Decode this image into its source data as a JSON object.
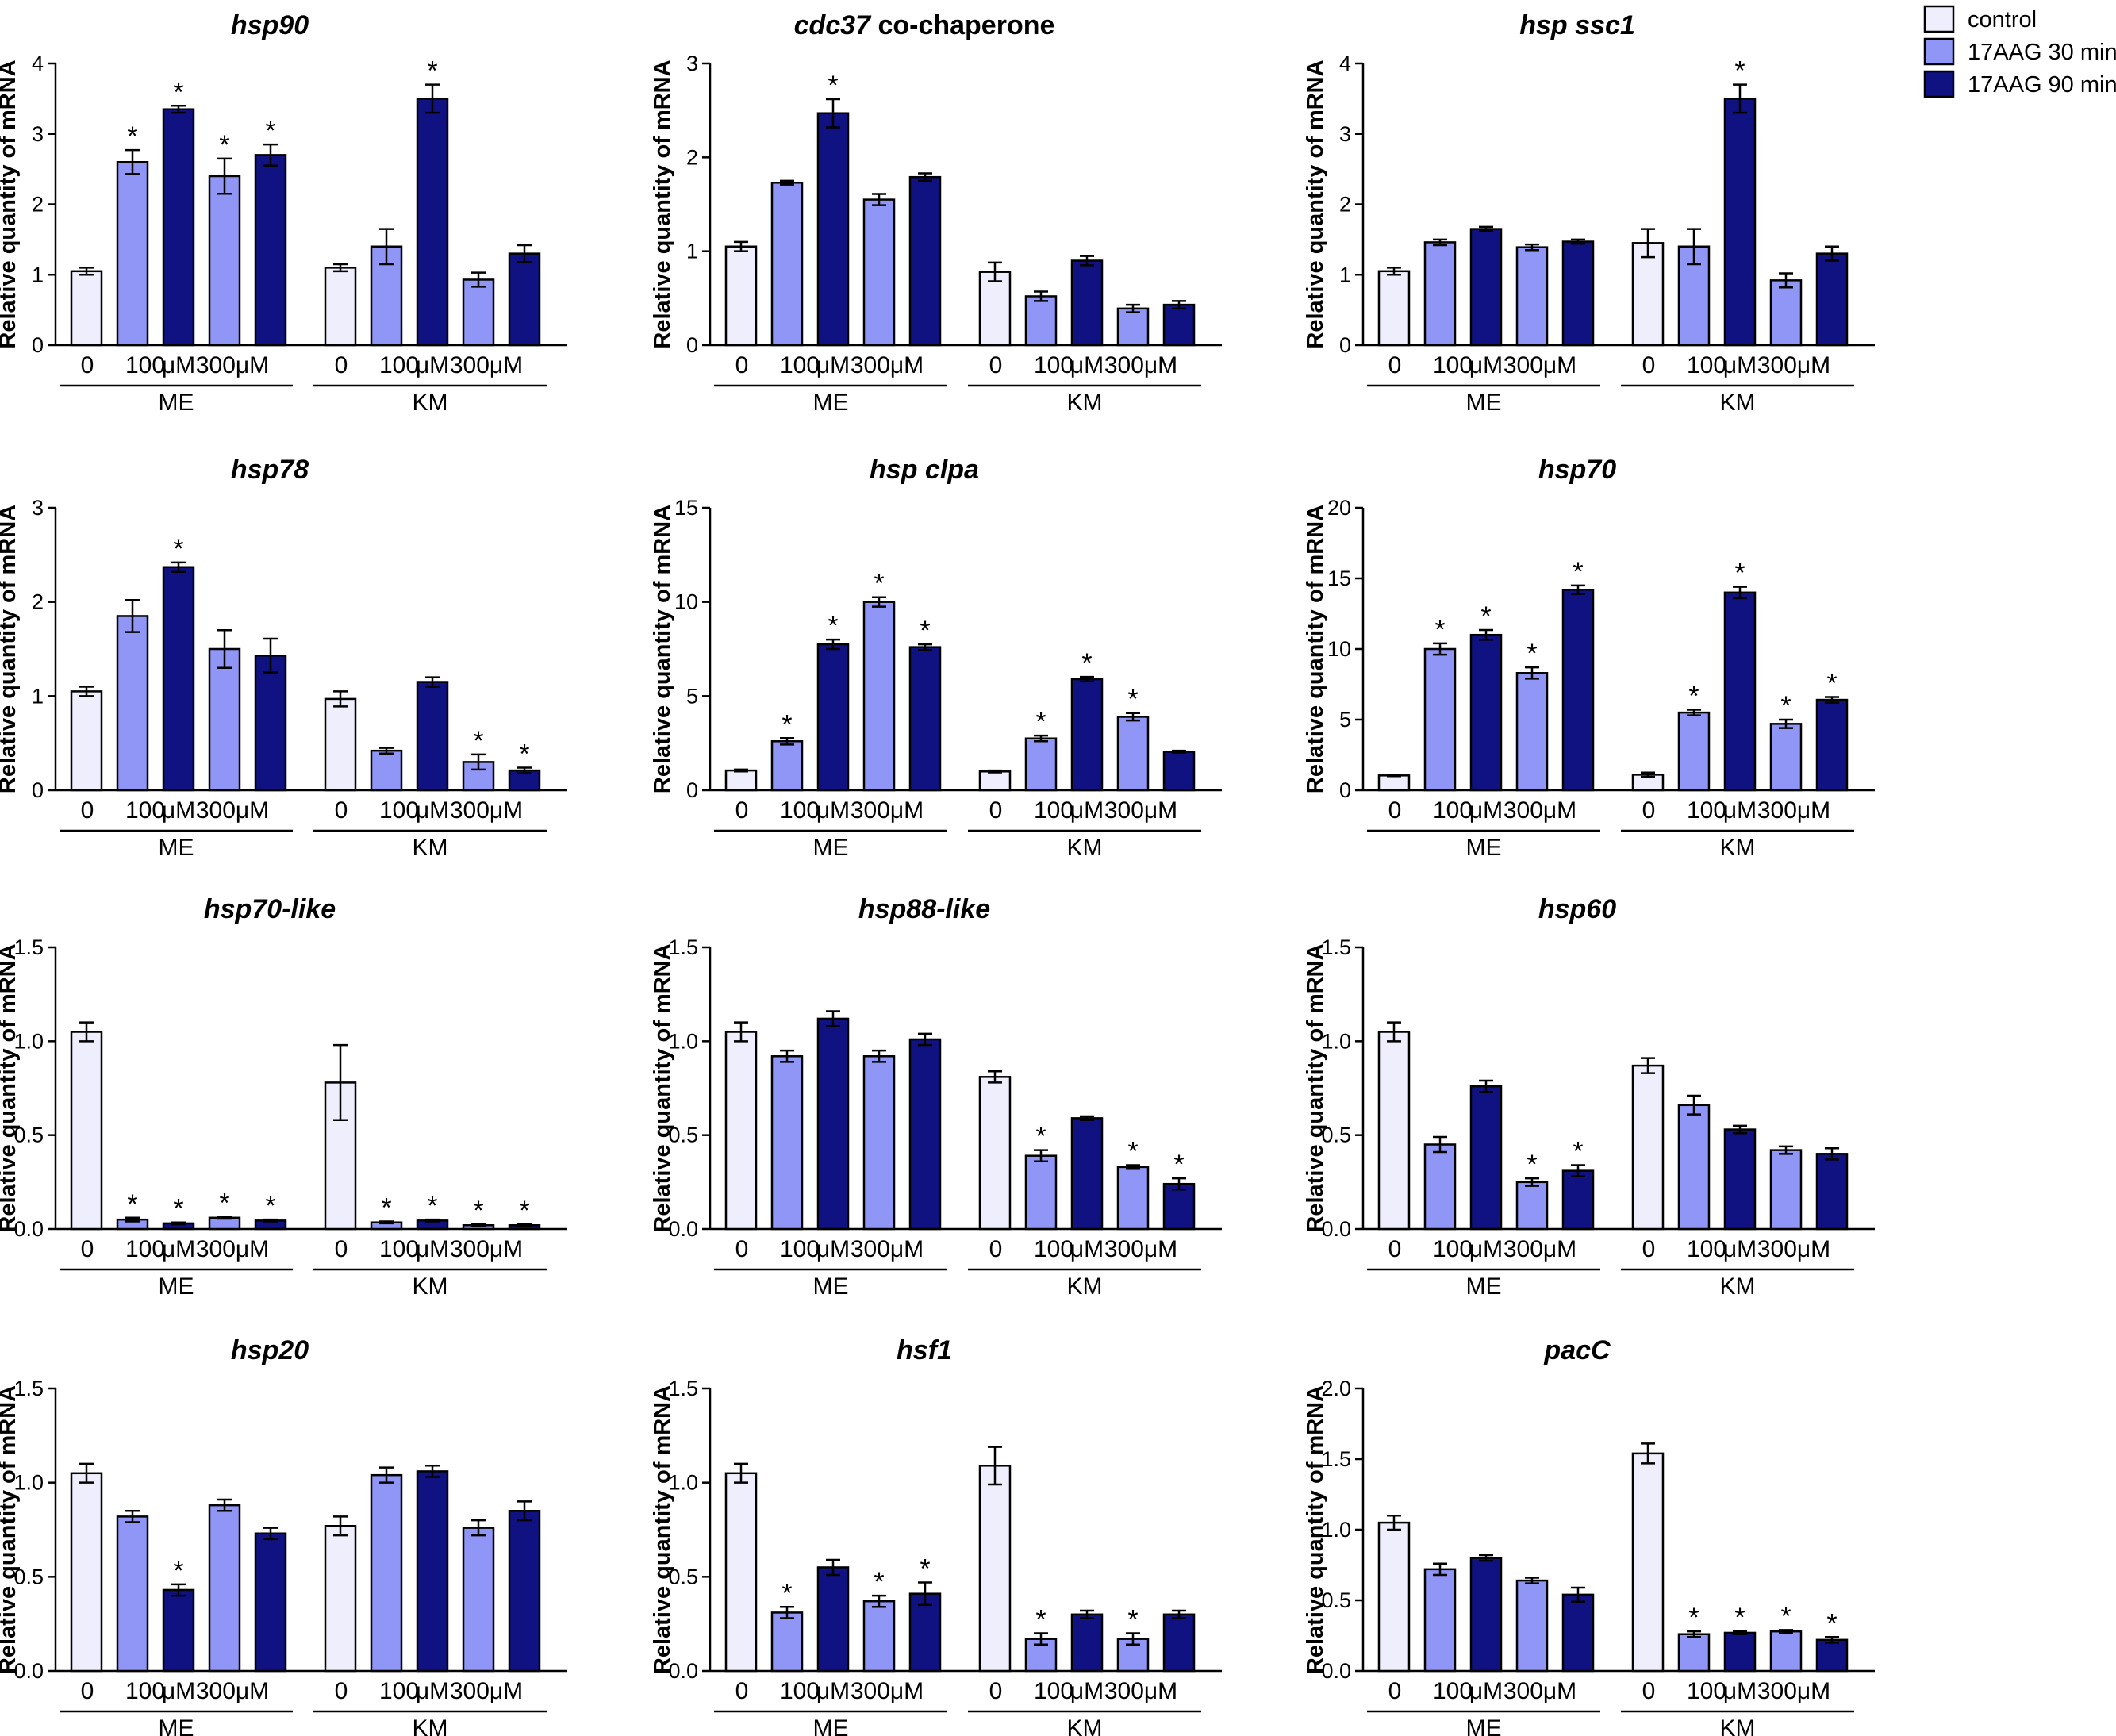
{
  "legend": {
    "items": [
      {
        "label": "control",
        "color": "#eeeefc"
      },
      {
        "label": "17AAG 30 min",
        "color": "#8f96f5"
      },
      {
        "label": "17AAG 90 min",
        "color": "#0f1280"
      }
    ]
  },
  "ylabel": "Relative quantity of mRNA",
  "category_labels": [
    "0",
    "100",
    "μM",
    "300μM"
  ],
  "groups": [
    "ME",
    "KM"
  ],
  "bar_conditions": [
    "control",
    "100 μM 30 min",
    "100 μM 90 min",
    "300 μM 30 min",
    "300 μM 90 min"
  ],
  "chart_data": [
    {
      "type": "bar",
      "title": "hsp90",
      "title_suffix": "",
      "ylabel": "Relative quantity of mRNA",
      "ylim": [
        0,
        4
      ],
      "yticks": [
        "0",
        "1",
        "2",
        "3",
        "4"
      ],
      "series": [
        {
          "name": "ME",
          "values": [
            1.05,
            2.6,
            3.35,
            2.4,
            2.7
          ],
          "errors": [
            0.05,
            0.17,
            0.05,
            0.25,
            0.15
          ],
          "significant": [
            false,
            true,
            true,
            true,
            true
          ]
        },
        {
          "name": "KM",
          "values": [
            1.1,
            1.4,
            3.5,
            0.93,
            1.3
          ],
          "errors": [
            0.05,
            0.25,
            0.2,
            0.1,
            0.12
          ],
          "significant": [
            false,
            false,
            true,
            false,
            false
          ]
        }
      ]
    },
    {
      "type": "bar",
      "title": "cdc37",
      "title_suffix": " co-chaperone",
      "ylabel": "Relative quantity of mRNA",
      "ylim": [
        0,
        3
      ],
      "yticks": [
        "0",
        "1",
        "2",
        "3"
      ],
      "series": [
        {
          "name": "ME",
          "values": [
            1.05,
            1.73,
            2.47,
            1.55,
            1.79
          ],
          "errors": [
            0.05,
            0.02,
            0.15,
            0.06,
            0.04
          ],
          "significant": [
            false,
            false,
            true,
            false,
            false
          ]
        },
        {
          "name": "KM",
          "values": [
            0.78,
            0.52,
            0.9,
            0.39,
            0.43
          ],
          "errors": [
            0.1,
            0.05,
            0.05,
            0.04,
            0.04
          ],
          "significant": [
            false,
            false,
            false,
            false,
            false
          ]
        }
      ]
    },
    {
      "type": "bar",
      "title": "hsp ssc1",
      "title_suffix": "",
      "ylabel": "Relative quantity of mRNA",
      "ylim": [
        0,
        4
      ],
      "yticks": [
        "0",
        "1",
        "2",
        "3",
        "4"
      ],
      "series": [
        {
          "name": "ME",
          "values": [
            1.05,
            1.46,
            1.65,
            1.39,
            1.47
          ],
          "errors": [
            0.05,
            0.04,
            0.03,
            0.04,
            0.03
          ],
          "significant": [
            false,
            false,
            false,
            false,
            false
          ]
        },
        {
          "name": "KM",
          "values": [
            1.45,
            1.4,
            3.5,
            0.92,
            1.3
          ],
          "errors": [
            0.2,
            0.25,
            0.2,
            0.1,
            0.1
          ],
          "significant": [
            false,
            false,
            true,
            false,
            false
          ]
        }
      ]
    },
    {
      "type": "bar",
      "title": "hsp78",
      "title_suffix": "",
      "ylabel": "Relative quantity of mRNA",
      "ylim": [
        0,
        3
      ],
      "yticks": [
        "0",
        "1",
        "2",
        "3"
      ],
      "series": [
        {
          "name": "ME",
          "values": [
            1.05,
            1.85,
            2.37,
            1.5,
            1.43
          ],
          "errors": [
            0.05,
            0.17,
            0.05,
            0.2,
            0.18
          ],
          "significant": [
            false,
            false,
            true,
            false,
            false
          ]
        },
        {
          "name": "KM",
          "values": [
            0.97,
            0.42,
            1.15,
            0.3,
            0.21
          ],
          "errors": [
            0.08,
            0.03,
            0.05,
            0.08,
            0.03
          ],
          "significant": [
            false,
            false,
            false,
            true,
            true
          ]
        }
      ]
    },
    {
      "type": "bar",
      "title": "hsp clpa",
      "title_suffix": "",
      "ylabel": "Relative quantity of mRNA",
      "ylim": [
        0,
        15
      ],
      "yticks": [
        "0",
        "5",
        "10",
        "15"
      ],
      "series": [
        {
          "name": "ME",
          "values": [
            1.05,
            2.6,
            7.75,
            10.0,
            7.6
          ],
          "errors": [
            0.05,
            0.17,
            0.25,
            0.25,
            0.15
          ],
          "significant": [
            false,
            true,
            true,
            true,
            true
          ]
        },
        {
          "name": "KM",
          "values": [
            1.0,
            2.75,
            5.9,
            3.9,
            2.05
          ],
          "errors": [
            0.05,
            0.15,
            0.12,
            0.2,
            0.05
          ],
          "significant": [
            false,
            true,
            true,
            true,
            false
          ]
        }
      ]
    },
    {
      "type": "bar",
      "title": "hsp70",
      "title_suffix": "",
      "ylabel": "Relative quantity of mRNA",
      "ylim": [
        0,
        20
      ],
      "yticks": [
        "0",
        "5",
        "10",
        "15",
        "20"
      ],
      "series": [
        {
          "name": "ME",
          "values": [
            1.05,
            10.0,
            11.0,
            8.3,
            14.2
          ],
          "errors": [
            0.05,
            0.4,
            0.35,
            0.4,
            0.3
          ],
          "significant": [
            false,
            true,
            true,
            true,
            true
          ]
        },
        {
          "name": "KM",
          "values": [
            1.1,
            5.5,
            14.0,
            4.7,
            6.4
          ],
          "errors": [
            0.15,
            0.2,
            0.4,
            0.3,
            0.2
          ],
          "significant": [
            false,
            true,
            true,
            true,
            true
          ]
        }
      ]
    },
    {
      "type": "bar",
      "title": "hsp70-like",
      "title_suffix": "",
      "ylabel": "Relative quantity of mRNA",
      "ylim": [
        0,
        1.5
      ],
      "yticks": [
        "0.0",
        "0.5",
        "1.0",
        "1.5"
      ],
      "series": [
        {
          "name": "ME",
          "values": [
            1.05,
            0.05,
            0.03,
            0.06,
            0.045
          ],
          "errors": [
            0.05,
            0.01,
            0.005,
            0.005,
            0.005
          ],
          "significant": [
            false,
            true,
            true,
            true,
            true
          ]
        },
        {
          "name": "KM",
          "values": [
            0.78,
            0.035,
            0.045,
            0.02,
            0.02
          ],
          "errors": [
            0.2,
            0.005,
            0.005,
            0.005,
            0.005
          ],
          "significant": [
            false,
            true,
            true,
            true,
            true
          ]
        }
      ]
    },
    {
      "type": "bar",
      "title": "hsp88-like",
      "title_suffix": "",
      "ylabel": "Relative quantity of mRNA",
      "ylim": [
        0,
        1.5
      ],
      "yticks": [
        "0.0",
        "0.5",
        "1.0",
        "1.5"
      ],
      "series": [
        {
          "name": "ME",
          "values": [
            1.05,
            0.92,
            1.12,
            0.92,
            1.01
          ],
          "errors": [
            0.05,
            0.03,
            0.04,
            0.03,
            0.03
          ],
          "significant": [
            false,
            false,
            false,
            false,
            false
          ]
        },
        {
          "name": "KM",
          "values": [
            0.81,
            0.39,
            0.59,
            0.33,
            0.24
          ],
          "errors": [
            0.03,
            0.03,
            0.01,
            0.01,
            0.03
          ],
          "significant": [
            false,
            true,
            false,
            true,
            true
          ]
        }
      ]
    },
    {
      "type": "bar",
      "title": "hsp60",
      "title_suffix": "",
      "ylabel": "Relative quantity of mRNA",
      "ylim": [
        0,
        1.5
      ],
      "yticks": [
        "0.0",
        "0.5",
        "1.0",
        "1.5"
      ],
      "series": [
        {
          "name": "ME",
          "values": [
            1.05,
            0.45,
            0.76,
            0.25,
            0.31
          ],
          "errors": [
            0.05,
            0.04,
            0.03,
            0.02,
            0.03
          ],
          "significant": [
            false,
            false,
            false,
            true,
            true
          ]
        },
        {
          "name": "KM",
          "values": [
            0.87,
            0.66,
            0.53,
            0.42,
            0.4
          ],
          "errors": [
            0.04,
            0.05,
            0.02,
            0.02,
            0.03
          ],
          "significant": [
            false,
            false,
            false,
            false,
            false
          ]
        }
      ]
    },
    {
      "type": "bar",
      "title": "hsp20",
      "title_suffix": "",
      "ylabel": "Relative quantity of mRNA",
      "ylim": [
        0,
        1.5
      ],
      "yticks": [
        "0.0",
        "0.5",
        "1.0",
        "1.5"
      ],
      "series": [
        {
          "name": "ME",
          "values": [
            1.05,
            0.82,
            0.43,
            0.88,
            0.73
          ],
          "errors": [
            0.05,
            0.03,
            0.03,
            0.03,
            0.03
          ],
          "significant": [
            false,
            false,
            true,
            false,
            false
          ]
        },
        {
          "name": "KM",
          "values": [
            0.77,
            1.04,
            1.06,
            0.76,
            0.85
          ],
          "errors": [
            0.05,
            0.04,
            0.03,
            0.04,
            0.05
          ],
          "significant": [
            false,
            false,
            false,
            false,
            false
          ]
        }
      ]
    },
    {
      "type": "bar",
      "title": "hsf1",
      "title_suffix": "",
      "ylabel": "Relative quantity of mRNA",
      "ylim": [
        0,
        1.5
      ],
      "yticks": [
        "0.0",
        "0.5",
        "1.0",
        "1.5"
      ],
      "series": [
        {
          "name": "ME",
          "values": [
            1.05,
            0.31,
            0.55,
            0.37,
            0.41
          ],
          "errors": [
            0.05,
            0.03,
            0.04,
            0.03,
            0.06
          ],
          "significant": [
            false,
            true,
            false,
            true,
            true
          ]
        },
        {
          "name": "KM",
          "values": [
            1.09,
            0.17,
            0.3,
            0.17,
            0.3
          ],
          "errors": [
            0.1,
            0.03,
            0.02,
            0.03,
            0.02
          ],
          "significant": [
            false,
            true,
            false,
            true,
            false
          ]
        }
      ]
    },
    {
      "type": "bar",
      "title": "pacC",
      "title_suffix": "",
      "ylabel": "Relative quantity of mRNA",
      "ylim": [
        0,
        2.0
      ],
      "yticks": [
        "0.0",
        "0.5",
        "1.0",
        "1.5",
        "2.0"
      ],
      "series": [
        {
          "name": "ME",
          "values": [
            1.05,
            0.72,
            0.8,
            0.64,
            0.54
          ],
          "errors": [
            0.05,
            0.04,
            0.02,
            0.02,
            0.05
          ],
          "significant": [
            false,
            false,
            false,
            false,
            false
          ]
        },
        {
          "name": "KM",
          "values": [
            1.54,
            0.26,
            0.27,
            0.28,
            0.22
          ],
          "errors": [
            0.07,
            0.02,
            0.01,
            0.01,
            0.02
          ],
          "significant": [
            false,
            true,
            true,
            true,
            true
          ]
        }
      ]
    }
  ]
}
